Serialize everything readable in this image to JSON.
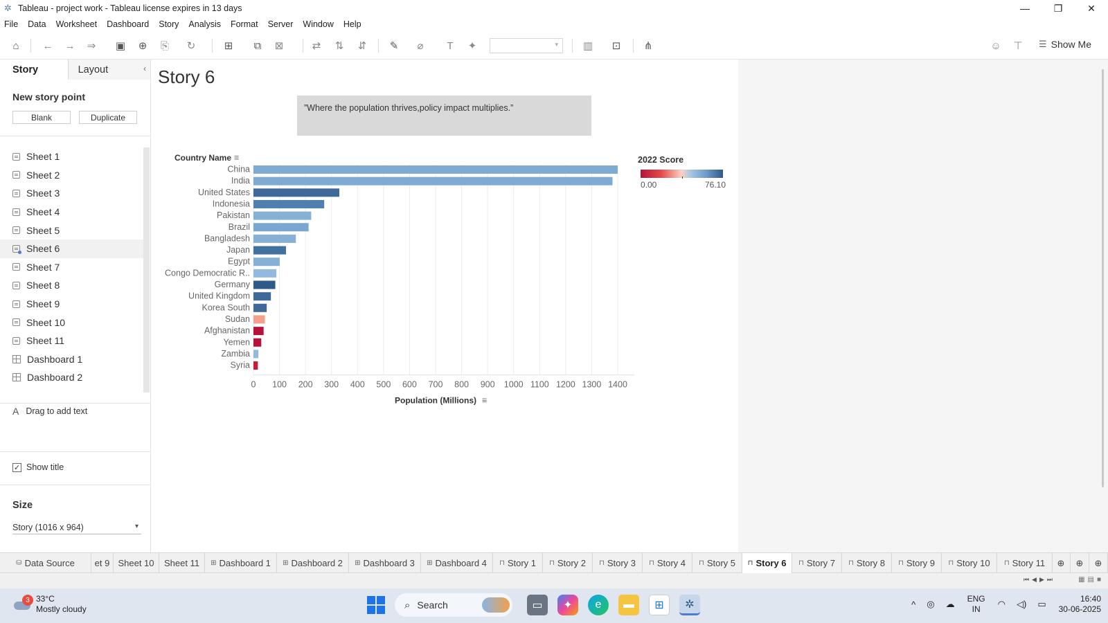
{
  "window": {
    "title": "Tableau - project work - Tableau license expires in 13 days",
    "controls": [
      "—",
      "❐",
      "✕"
    ]
  },
  "menu": [
    "File",
    "Data",
    "Worksheet",
    "Dashboard",
    "Story",
    "Analysis",
    "Format",
    "Server",
    "Window",
    "Help"
  ],
  "toolbar": {
    "show_me_label": "Show Me"
  },
  "left_panel": {
    "tabs": [
      "Story",
      "Layout"
    ],
    "new_story_point_title": "New story point",
    "blank_label": "Blank",
    "duplicate_label": "Duplicate",
    "sheets": [
      {
        "label": "Sheet 1",
        "type": "sheet"
      },
      {
        "label": "Sheet 2",
        "type": "sheet"
      },
      {
        "label": "Sheet 3",
        "type": "sheet"
      },
      {
        "label": "Sheet 4",
        "type": "sheet"
      },
      {
        "label": "Sheet 5",
        "type": "sheet"
      },
      {
        "label": "Sheet 6",
        "type": "sheet",
        "selected": true
      },
      {
        "label": "Sheet 7",
        "type": "sheet"
      },
      {
        "label": "Sheet 8",
        "type": "sheet"
      },
      {
        "label": "Sheet 9",
        "type": "sheet"
      },
      {
        "label": "Sheet 10",
        "type": "sheet"
      },
      {
        "label": "Sheet 11",
        "type": "sheet"
      },
      {
        "label": "Dashboard 1",
        "type": "dashboard"
      },
      {
        "label": "Dashboard 2",
        "type": "dashboard"
      }
    ],
    "drag_text_label": "Drag to add text",
    "show_title_label": "Show title",
    "size_title": "Size",
    "size_value": "Story (1016 x 964)"
  },
  "story": {
    "title": "Story 6",
    "caption": "”Where the population thrives,policy impact multiplies.”"
  },
  "chart_data": {
    "type": "bar",
    "orientation": "horizontal",
    "row_header": "Country Name",
    "xlabel": "Population (Millions)",
    "xlim": [
      0,
      1400
    ],
    "xticks": [
      0,
      100,
      200,
      300,
      400,
      500,
      600,
      700,
      800,
      900,
      1000,
      1100,
      1200,
      1300,
      1400
    ],
    "categories": [
      "China",
      "India",
      "United States",
      "Indonesia",
      "Pakistan",
      "Brazil",
      "Bangladesh",
      "Japan",
      "Egypt",
      "Congo Democratic R..",
      "Germany",
      "United Kingdom",
      "Korea South",
      "Sudan",
      "Afghanistan",
      "Yemen",
      "Zambia",
      "Syria"
    ],
    "values": [
      1400,
      1380,
      330,
      272,
      222,
      212,
      163,
      125,
      101,
      88,
      84,
      67,
      51,
      44,
      39,
      30,
      19,
      17
    ],
    "colors": [
      "#7faad2",
      "#7faad2",
      "#3e6a9a",
      "#4f7fb0",
      "#86b0d6",
      "#7aa7d0",
      "#86b0d6",
      "#42709f",
      "#86b0d6",
      "#93bade",
      "#2e5a8a",
      "#3e6a9a",
      "#3e6a9a",
      "#f4a08c",
      "#b8123a",
      "#b8123a",
      "#93bade",
      "#c21f3f"
    ],
    "grid": true,
    "legend": {
      "title": "2022 Score",
      "min_label": "0.00",
      "max_label": "76.10",
      "placement": "right"
    }
  },
  "bottom_tabs": [
    {
      "label": "Data Source",
      "icon": "datasource"
    },
    {
      "label": "et 9",
      "icon": ""
    },
    {
      "label": "Sheet 10",
      "icon": ""
    },
    {
      "label": "Sheet 11",
      "icon": ""
    },
    {
      "label": "Dashboard 1",
      "icon": "dashboard"
    },
    {
      "label": "Dashboard 2",
      "icon": "dashboard"
    },
    {
      "label": "Dashboard 3",
      "icon": "dashboard"
    },
    {
      "label": "Dashboard 4",
      "icon": "dashboard"
    },
    {
      "label": "Story 1",
      "icon": "story"
    },
    {
      "label": "Story 2",
      "icon": "story"
    },
    {
      "label": "Story 3",
      "icon": "story"
    },
    {
      "label": "Story 4",
      "icon": "story"
    },
    {
      "label": "Story 5",
      "icon": "story"
    },
    {
      "label": "Story 6",
      "icon": "story",
      "active": true
    },
    {
      "label": "Story 7",
      "icon": "story"
    },
    {
      "label": "Story 8",
      "icon": "story"
    },
    {
      "label": "Story 9",
      "icon": "story"
    },
    {
      "label": "Story 10",
      "icon": "story"
    },
    {
      "label": "Story 11",
      "icon": "story"
    }
  ],
  "taskbar": {
    "weather_temp": "33°C",
    "weather_desc": "Mostly cloudy",
    "weather_badge": "3",
    "search_label": "Search",
    "lang_line1": "ENG",
    "lang_line2": "IN",
    "time": "16:40",
    "date": "30-06-2025"
  }
}
